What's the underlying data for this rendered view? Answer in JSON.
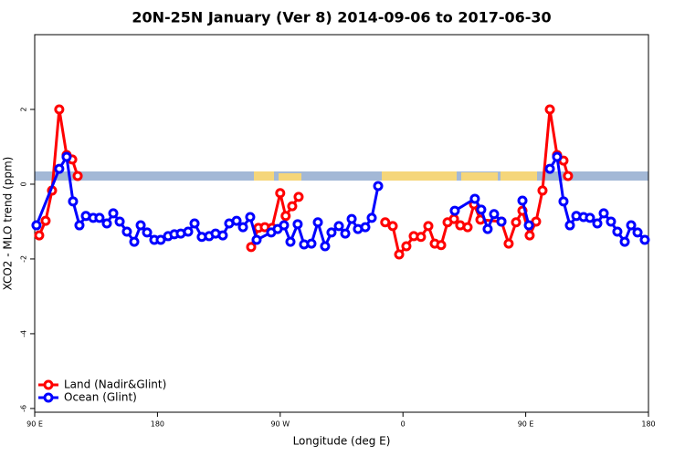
{
  "chart_data": {
    "type": "line",
    "title": "20N-25N January (Ver 8)   2014-09-06 to 2017-06-30",
    "xlabel": "Longitude (deg E)",
    "ylabel": "XCO2 - MLO trend (ppm)",
    "xlim": [
      90,
      540
    ],
    "ylim": [
      -6.1,
      4
    ],
    "xticks": [
      {
        "value": 90,
        "label": "90 E"
      },
      180,
      {
        "value": 270,
        "label": "90 W"
      },
      {
        "value": 360,
        "label": "0"
      },
      {
        "value": 450,
        "label": "90 E"
      },
      {
        "value": 540,
        "label": "180"
      }
    ],
    "yticks": [
      2,
      0,
      -2,
      -4,
      -6
    ],
    "grid": false,
    "legend": "bottom left",
    "series": [
      {
        "name": "Land (Nadir&Glint)",
        "color": "#ff0000",
        "x": [
          93.3,
          98,
          102.7,
          108,
          113.4,
          117.5,
          121.5,
          null,
          248.7,
          254,
          258.7,
          264,
          270,
          274,
          278.8,
          283.5,
          null,
          347,
          352.5,
          357.2,
          362.5,
          367.9,
          373.2,
          378.6,
          383.3,
          388,
          392.7,
          397.4,
          402,
          407.4,
          412.1,
          416.8,
          432.2,
          437.5,
          442.9,
          447.6,
          452.9,
          457.6,
          462.3,
          467.7,
          473,
          477.7,
          481
        ],
        "values": [
          -1.37,
          -0.98,
          -0.17,
          2.0,
          0.78,
          0.66,
          0.22,
          null,
          -1.68,
          -1.17,
          -1.15,
          -1.17,
          -0.24,
          -0.85,
          -0.59,
          -0.34,
          null,
          -1.02,
          -1.12,
          -1.88,
          -1.66,
          -1.39,
          -1.41,
          -1.12,
          -1.59,
          -1.63,
          -1.02,
          -0.93,
          -1.1,
          -1.15,
          -0.54,
          -0.95,
          -1.0,
          -1.59,
          -1.02,
          -0.71,
          -1.37,
          -1.0,
          -0.17,
          2.0,
          0.78,
          0.63,
          0.22
        ]
      },
      {
        "name": "Ocean (Glint)",
        "color": "#0000ff",
        "x": [
          91.3,
          108,
          113.4,
          118.1,
          122.8,
          127.5,
          132.9,
          137.5,
          142.9,
          147.6,
          152.3,
          157.6,
          163,
          167.7,
          172.4,
          177.7,
          182.4,
          187.8,
          192.4,
          197.1,
          202.5,
          207.2,
          212.5,
          217.9,
          222.6,
          227.9,
          232.6,
          238,
          242.7,
          248,
          252.7,
          263.4,
          268.1,
          272.8,
          277.5,
          282.8,
          287.5,
          292.9,
          297.6,
          302.9,
          307.6,
          313,
          317.7,
          322.4,
          327,
          332.4,
          337.1,
          341.8,
          null,
          398,
          412.7,
          417.4,
          422.1,
          426.8,
          432.2,
          null,
          447.6,
          452.3,
          null,
          467.7,
          473,
          477.7,
          482.4,
          487.1,
          492.4,
          497.1,
          502.5,
          507.2,
          512.5,
          517.2,
          522.6,
          527.3,
          532,
          537.3
        ],
        "values": [
          -1.1,
          0.41,
          0.73,
          -0.46,
          -1.1,
          -0.85,
          -0.9,
          -0.9,
          -1.05,
          -0.78,
          -1.0,
          -1.27,
          -1.54,
          -1.1,
          -1.29,
          -1.49,
          -1.49,
          -1.39,
          -1.34,
          -1.32,
          -1.27,
          -1.05,
          -1.41,
          -1.39,
          -1.32,
          -1.37,
          -1.05,
          -0.98,
          -1.15,
          -0.88,
          -1.49,
          -1.29,
          -1.2,
          -1.1,
          -1.54,
          -1.07,
          -1.61,
          -1.59,
          -1.02,
          -1.66,
          -1.29,
          -1.12,
          -1.32,
          -0.93,
          -1.2,
          -1.15,
          -0.9,
          -0.05,
          null,
          -0.71,
          -0.39,
          -0.68,
          -1.2,
          -0.8,
          -1.0,
          null,
          -0.44,
          -1.1,
          null,
          0.41,
          0.73,
          -0.46,
          -1.1,
          -0.85,
          -0.88,
          -0.9,
          -1.05,
          -0.78,
          -1.0,
          -1.27,
          -1.54,
          -1.1,
          -1.29,
          -1.49
        ]
      }
    ]
  }
}
